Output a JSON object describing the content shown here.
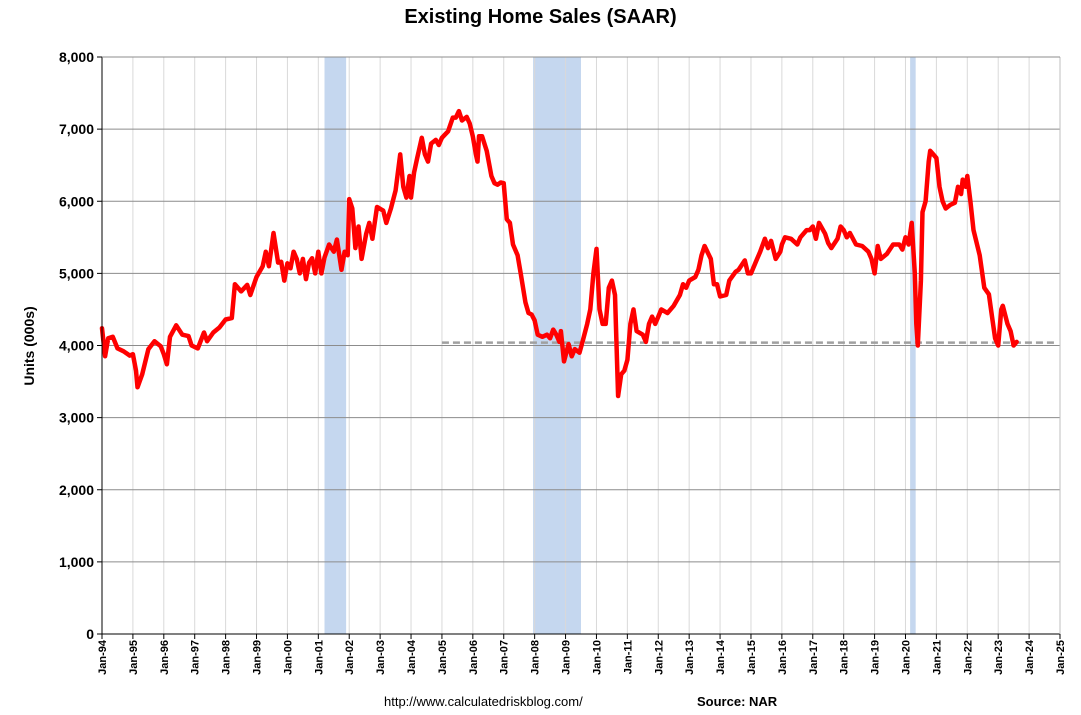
{
  "chart_data": {
    "type": "line",
    "title": "Existing Home Sales (SAAR)",
    "ylabel": "Units (000s)",
    "xlabel": "",
    "ylim": [
      0,
      8000
    ],
    "yticks": [
      0,
      1000,
      2000,
      3000,
      4000,
      5000,
      6000,
      7000,
      8000
    ],
    "y_tick_labels": [
      "0",
      "1,000",
      "2,000",
      "3,000",
      "4,000",
      "5,000",
      "6,000",
      "7,000",
      "8,000"
    ],
    "xlim": [
      1994.0,
      2025.0
    ],
    "x_tick_labels": [
      "Jan-94",
      "Jan-95",
      "Jan-96",
      "Jan-97",
      "Jan-98",
      "Jan-99",
      "Jan-00",
      "Jan-01",
      "Jan-02",
      "Jan-03",
      "Jan-04",
      "Jan-05",
      "Jan-06",
      "Jan-07",
      "Jan-08",
      "Jan-09",
      "Jan-10",
      "Jan-11",
      "Jan-12",
      "Jan-13",
      "Jan-14",
      "Jan-15",
      "Jan-16",
      "Jan-17",
      "Jan-18",
      "Jan-19",
      "Jan-20",
      "Jan-21",
      "Jan-22",
      "Jan-23",
      "Jan-24",
      "Jan-25"
    ],
    "grid": true,
    "line_color": "#ff0000",
    "recession_color": "#c5d7ef",
    "recessions": [
      [
        2001.2,
        2001.9
      ],
      [
        2007.95,
        2009.5
      ],
      [
        2020.15,
        2020.33
      ]
    ],
    "reference_line": {
      "value": 4040,
      "x_start": 2005.0,
      "x_end": 2024.9,
      "color": "#a0a0a0",
      "style": "dashed"
    },
    "series": [
      {
        "values": [
          [
            1994.0,
            4240
          ],
          [
            1994.1,
            3850
          ],
          [
            1994.2,
            4100
          ],
          [
            1994.35,
            4120
          ],
          [
            1994.5,
            3960
          ],
          [
            1994.7,
            3920
          ],
          [
            1994.9,
            3860
          ],
          [
            1995.0,
            3880
          ],
          [
            1995.1,
            3650
          ],
          [
            1995.15,
            3420
          ],
          [
            1995.3,
            3600
          ],
          [
            1995.5,
            3950
          ],
          [
            1995.7,
            4060
          ],
          [
            1995.9,
            3990
          ],
          [
            1996.0,
            3880
          ],
          [
            1996.1,
            3740
          ],
          [
            1996.2,
            4120
          ],
          [
            1996.4,
            4280
          ],
          [
            1996.6,
            4150
          ],
          [
            1996.8,
            4130
          ],
          [
            1996.9,
            4000
          ],
          [
            1997.1,
            3960
          ],
          [
            1997.3,
            4180
          ],
          [
            1997.4,
            4060
          ],
          [
            1997.6,
            4180
          ],
          [
            1997.8,
            4250
          ],
          [
            1998.0,
            4360
          ],
          [
            1998.2,
            4380
          ],
          [
            1998.3,
            4850
          ],
          [
            1998.5,
            4750
          ],
          [
            1998.7,
            4840
          ],
          [
            1998.8,
            4700
          ],
          [
            1999.0,
            4950
          ],
          [
            1999.2,
            5100
          ],
          [
            1999.3,
            5300
          ],
          [
            1999.4,
            5100
          ],
          [
            1999.55,
            5560
          ],
          [
            1999.7,
            5150
          ],
          [
            1999.8,
            5160
          ],
          [
            1999.9,
            4900
          ],
          [
            2000.0,
            5140
          ],
          [
            2000.1,
            5070
          ],
          [
            2000.2,
            5300
          ],
          [
            2000.3,
            5200
          ],
          [
            2000.4,
            5000
          ],
          [
            2000.5,
            5200
          ],
          [
            2000.6,
            4920
          ],
          [
            2000.7,
            5150
          ],
          [
            2000.8,
            5210
          ],
          [
            2000.9,
            5000
          ],
          [
            2001.0,
            5300
          ],
          [
            2001.1,
            5000
          ],
          [
            2001.2,
            5220
          ],
          [
            2001.35,
            5400
          ],
          [
            2001.5,
            5300
          ],
          [
            2001.6,
            5470
          ],
          [
            2001.75,
            5050
          ],
          [
            2001.85,
            5300
          ],
          [
            2001.95,
            5250
          ],
          [
            2002.0,
            6030
          ],
          [
            2002.1,
            5900
          ],
          [
            2002.2,
            5350
          ],
          [
            2002.3,
            5650
          ],
          [
            2002.4,
            5200
          ],
          [
            2002.55,
            5550
          ],
          [
            2002.65,
            5700
          ],
          [
            2002.75,
            5480
          ],
          [
            2002.9,
            5920
          ],
          [
            2003.1,
            5870
          ],
          [
            2003.2,
            5700
          ],
          [
            2003.35,
            5900
          ],
          [
            2003.5,
            6150
          ],
          [
            2003.65,
            6650
          ],
          [
            2003.75,
            6200
          ],
          [
            2003.85,
            6050
          ],
          [
            2003.95,
            6350
          ],
          [
            2004.0,
            6050
          ],
          [
            2004.1,
            6400
          ],
          [
            2004.2,
            6600
          ],
          [
            2004.35,
            6880
          ],
          [
            2004.45,
            6650
          ],
          [
            2004.55,
            6550
          ],
          [
            2004.65,
            6800
          ],
          [
            2004.8,
            6850
          ],
          [
            2004.9,
            6780
          ],
          [
            2005.0,
            6880
          ],
          [
            2005.2,
            6970
          ],
          [
            2005.35,
            7160
          ],
          [
            2005.45,
            7160
          ],
          [
            2005.55,
            7250
          ],
          [
            2005.65,
            7120
          ],
          [
            2005.8,
            7170
          ],
          [
            2005.9,
            7080
          ],
          [
            2006.0,
            6900
          ],
          [
            2006.1,
            6650
          ],
          [
            2006.15,
            6550
          ],
          [
            2006.2,
            6900
          ],
          [
            2006.3,
            6900
          ],
          [
            2006.45,
            6700
          ],
          [
            2006.6,
            6350
          ],
          [
            2006.7,
            6250
          ],
          [
            2006.8,
            6230
          ],
          [
            2006.9,
            6260
          ],
          [
            2007.0,
            6250
          ],
          [
            2007.1,
            5750
          ],
          [
            2007.2,
            5700
          ],
          [
            2007.3,
            5400
          ],
          [
            2007.45,
            5250
          ],
          [
            2007.55,
            5000
          ],
          [
            2007.7,
            4600
          ],
          [
            2007.8,
            4450
          ],
          [
            2007.9,
            4430
          ],
          [
            2008.0,
            4350
          ],
          [
            2008.1,
            4150
          ],
          [
            2008.25,
            4120
          ],
          [
            2008.4,
            4150
          ],
          [
            2008.5,
            4100
          ],
          [
            2008.6,
            4220
          ],
          [
            2008.7,
            4150
          ],
          [
            2008.8,
            4050
          ],
          [
            2008.85,
            4200
          ],
          [
            2008.95,
            3780
          ],
          [
            2009.1,
            4020
          ],
          [
            2009.2,
            3850
          ],
          [
            2009.3,
            3950
          ],
          [
            2009.45,
            3900
          ],
          [
            2009.55,
            4050
          ],
          [
            2009.7,
            4300
          ],
          [
            2009.8,
            4500
          ],
          [
            2009.9,
            5000
          ],
          [
            2010.0,
            5340
          ],
          [
            2010.1,
            4500
          ],
          [
            2010.2,
            4300
          ],
          [
            2010.3,
            4300
          ],
          [
            2010.4,
            4800
          ],
          [
            2010.5,
            4900
          ],
          [
            2010.6,
            4700
          ],
          [
            2010.7,
            3300
          ],
          [
            2010.8,
            3600
          ],
          [
            2010.9,
            3650
          ],
          [
            2011.0,
            3800
          ],
          [
            2011.1,
            4300
          ],
          [
            2011.2,
            4500
          ],
          [
            2011.3,
            4200
          ],
          [
            2011.5,
            4150
          ],
          [
            2011.6,
            4050
          ],
          [
            2011.7,
            4300
          ],
          [
            2011.8,
            4400
          ],
          [
            2011.9,
            4300
          ],
          [
            2012.0,
            4400
          ],
          [
            2012.1,
            4500
          ],
          [
            2012.3,
            4450
          ],
          [
            2012.5,
            4550
          ],
          [
            2012.7,
            4700
          ],
          [
            2012.8,
            4850
          ],
          [
            2012.9,
            4800
          ],
          [
            2013.0,
            4900
          ],
          [
            2013.2,
            4950
          ],
          [
            2013.3,
            5050
          ],
          [
            2013.4,
            5250
          ],
          [
            2013.5,
            5380
          ],
          [
            2013.7,
            5200
          ],
          [
            2013.8,
            4850
          ],
          [
            2013.9,
            4850
          ],
          [
            2014.0,
            4680
          ],
          [
            2014.2,
            4700
          ],
          [
            2014.3,
            4900
          ],
          [
            2014.5,
            5020
          ],
          [
            2014.6,
            5050
          ],
          [
            2014.8,
            5180
          ],
          [
            2014.9,
            5000
          ],
          [
            2015.0,
            5000
          ],
          [
            2015.2,
            5200
          ],
          [
            2015.3,
            5300
          ],
          [
            2015.45,
            5480
          ],
          [
            2015.55,
            5350
          ],
          [
            2015.65,
            5450
          ],
          [
            2015.8,
            5200
          ],
          [
            2015.95,
            5300
          ],
          [
            2016.0,
            5400
          ],
          [
            2016.1,
            5500
          ],
          [
            2016.3,
            5480
          ],
          [
            2016.5,
            5400
          ],
          [
            2016.6,
            5500
          ],
          [
            2016.8,
            5600
          ],
          [
            2016.9,
            5600
          ],
          [
            2017.0,
            5650
          ],
          [
            2017.1,
            5480
          ],
          [
            2017.2,
            5700
          ],
          [
            2017.4,
            5550
          ],
          [
            2017.5,
            5420
          ],
          [
            2017.6,
            5350
          ],
          [
            2017.8,
            5480
          ],
          [
            2017.9,
            5650
          ],
          [
            2018.0,
            5600
          ],
          [
            2018.1,
            5500
          ],
          [
            2018.2,
            5560
          ],
          [
            2018.4,
            5400
          ],
          [
            2018.6,
            5380
          ],
          [
            2018.8,
            5300
          ],
          [
            2018.9,
            5200
          ],
          [
            2019.0,
            5000
          ],
          [
            2019.1,
            5380
          ],
          [
            2019.2,
            5200
          ],
          [
            2019.4,
            5270
          ],
          [
            2019.6,
            5400
          ],
          [
            2019.8,
            5400
          ],
          [
            2019.9,
            5330
          ],
          [
            2020.0,
            5500
          ],
          [
            2020.1,
            5400
          ],
          [
            2020.2,
            5700
          ],
          [
            2020.3,
            5000
          ],
          [
            2020.35,
            4300
          ],
          [
            2020.4,
            4000
          ],
          [
            2020.5,
            4900
          ],
          [
            2020.55,
            5850
          ],
          [
            2020.65,
            6000
          ],
          [
            2020.75,
            6550
          ],
          [
            2020.8,
            6700
          ],
          [
            2020.9,
            6650
          ],
          [
            2021.0,
            6600
          ],
          [
            2021.1,
            6200
          ],
          [
            2021.2,
            6000
          ],
          [
            2021.3,
            5900
          ],
          [
            2021.45,
            5950
          ],
          [
            2021.6,
            5980
          ],
          [
            2021.7,
            6200
          ],
          [
            2021.8,
            6100
          ],
          [
            2021.85,
            6300
          ],
          [
            2021.95,
            6200
          ],
          [
            2022.0,
            6350
          ],
          [
            2022.1,
            6000
          ],
          [
            2022.2,
            5600
          ],
          [
            2022.4,
            5250
          ],
          [
            2022.55,
            4800
          ],
          [
            2022.7,
            4710
          ],
          [
            2022.8,
            4400
          ],
          [
            2022.9,
            4100
          ],
          [
            2023.0,
            4000
          ],
          [
            2023.1,
            4500
          ],
          [
            2023.15,
            4550
          ],
          [
            2023.3,
            4300
          ],
          [
            2023.4,
            4200
          ],
          [
            2023.5,
            4000
          ],
          [
            2023.6,
            4050
          ]
        ]
      }
    ]
  },
  "footer": {
    "url": "http://www.calculatedriskblog.com/",
    "source": "Source: NAR"
  }
}
